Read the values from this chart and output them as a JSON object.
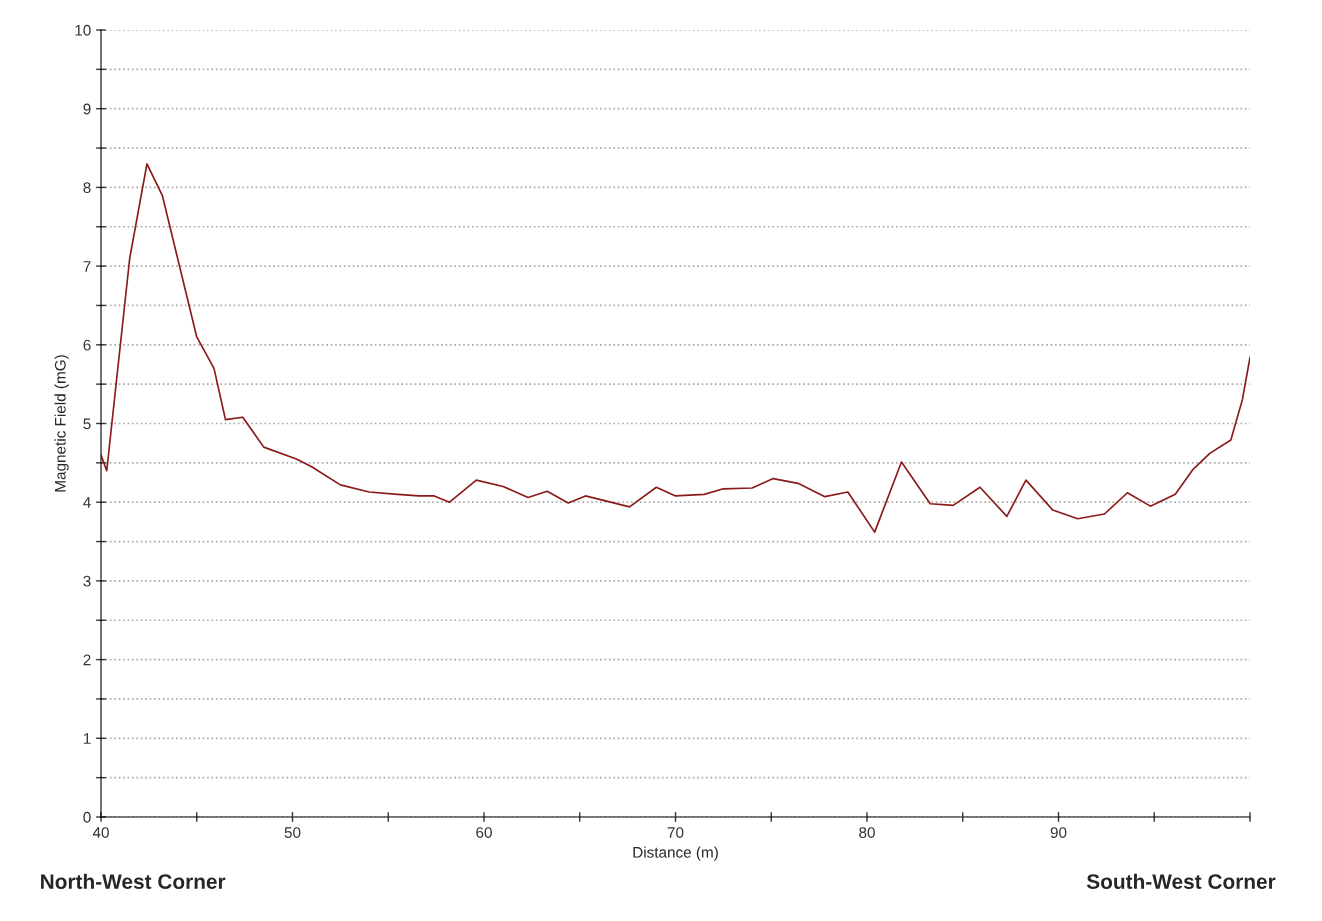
{
  "chart_data": {
    "type": "line",
    "xlabel": "Distance (m)",
    "ylabel": "Magnetic Field (mG)",
    "annotations": [
      "North-West Corner",
      "South-West Corner"
    ],
    "xlim": [
      40,
      100
    ],
    "xticks": [
      40,
      {
        "value": 45,
        "label": null
      },
      50,
      {
        "value": 55,
        "label": null
      },
      60,
      {
        "value": 65,
        "label": null
      },
      70,
      {
        "value": 75,
        "label": null
      },
      80,
      {
        "value": 85,
        "label": null
      },
      90,
      {
        "value": 95,
        "label": null
      },
      {
        "value": 100,
        "label": null
      }
    ],
    "ylim": [
      0,
      10
    ],
    "yticks": [
      0,
      {
        "value": 0.5,
        "label": null
      },
      1,
      {
        "value": 1.5,
        "label": null
      },
      2,
      {
        "value": 2.5,
        "label": null
      },
      3,
      {
        "value": 3.5,
        "label": null
      },
      4,
      {
        "value": 4.5,
        "label": null
      },
      5,
      {
        "value": 5.5,
        "label": null
      },
      6,
      {
        "value": 6.5,
        "label": null
      },
      7,
      {
        "value": 7.5,
        "label": null
      },
      8,
      {
        "value": 8.5,
        "label": null
      },
      9,
      {
        "value": 9.5,
        "label": null
      },
      10
    ],
    "grid": "y",
    "legend": false,
    "marker": "none",
    "line_style": "solid",
    "series": [
      {
        "color": "#8b1a1a",
        "x": [
          40,
          40.3,
          41.5,
          42.4,
          43.2,
          45,
          45.9,
          46.5,
          47.4,
          48.5,
          50.2,
          51,
          52.5,
          54,
          55.5,
          56.6,
          57.4,
          58.2,
          59.6,
          61,
          62.3,
          63.3,
          64.4,
          65.3,
          67.6,
          69,
          70,
          71.5,
          72.5,
          74,
          75.1,
          76.4,
          77.8,
          79,
          80.4,
          81.8,
          83.3,
          84.5,
          85.9,
          87.3,
          88.3,
          89.7,
          91,
          92.4,
          93.6,
          94.8,
          96.1,
          97,
          97.9,
          99,
          99.6,
          100
        ],
        "values": [
          4.6,
          4.4,
          7.1,
          8.3,
          7.9,
          6.1,
          5.7,
          5.05,
          5.08,
          4.7,
          4.55,
          4.45,
          4.22,
          4.13,
          4.1,
          4.08,
          4.08,
          4.0,
          4.28,
          4.2,
          4.06,
          4.14,
          3.99,
          4.08,
          3.94,
          4.19,
          4.08,
          4.1,
          4.17,
          4.18,
          4.3,
          4.24,
          4.07,
          4.13,
          3.62,
          4.51,
          3.98,
          3.96,
          4.19,
          3.82,
          4.28,
          3.9,
          3.79,
          3.85,
          4.12,
          3.95,
          4.1,
          4.41,
          4.62,
          4.79,
          5.3,
          5.84
        ]
      }
    ]
  }
}
